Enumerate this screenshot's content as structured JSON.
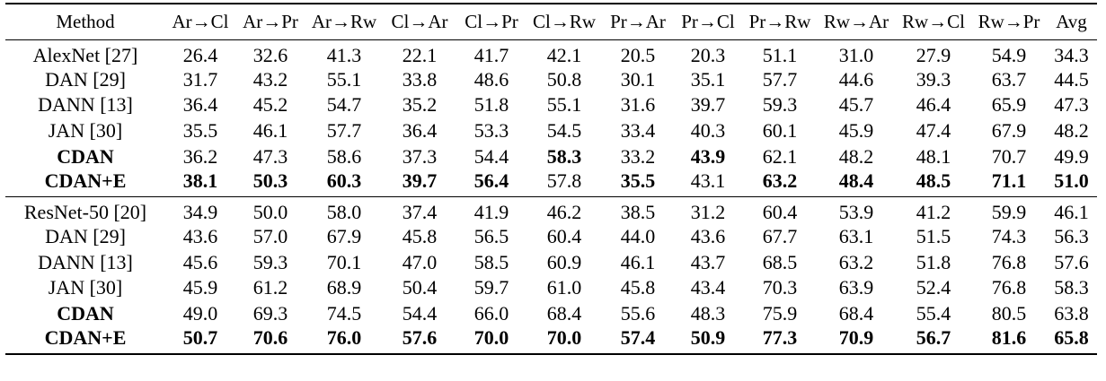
{
  "table": {
    "header": [
      "Method",
      "Ar→Cl",
      "Ar→Pr",
      "Ar→Rw",
      "Cl→Ar",
      "Cl→Pr",
      "Cl→Rw",
      "Pr→Ar",
      "Pr→Cl",
      "Pr→Rw",
      "Rw→Ar",
      "Rw→Cl",
      "Rw→Pr",
      "Avg"
    ],
    "groups": [
      {
        "rows": [
          [
            "AlexNet [27]",
            "26.4",
            "32.6",
            "41.3",
            "22.1",
            "41.7",
            "42.1",
            "20.5",
            "20.3",
            "51.1",
            "31.0",
            "27.9",
            "54.9",
            "34.3"
          ],
          [
            "DAN [29]",
            "31.7",
            "43.2",
            "55.1",
            "33.8",
            "48.6",
            "50.8",
            "30.1",
            "35.1",
            "57.7",
            "44.6",
            "39.3",
            "63.7",
            "44.5"
          ],
          [
            "DANN [13]",
            "36.4",
            "45.2",
            "54.7",
            "35.2",
            "51.8",
            "55.1",
            "31.6",
            "39.7",
            "59.3",
            "45.7",
            "46.4",
            "65.9",
            "47.3"
          ],
          [
            "JAN [30]",
            "35.5",
            "46.1",
            "57.7",
            "36.4",
            "53.3",
            "54.5",
            "33.4",
            "40.3",
            "60.1",
            "45.9",
            "47.4",
            "67.9",
            "48.2"
          ],
          [
            "CDAN",
            "36.2",
            "47.3",
            "58.6",
            "37.3",
            "54.4",
            "58.3",
            "33.2",
            "43.9",
            "62.1",
            "48.2",
            "48.1",
            "70.7",
            "49.9"
          ],
          [
            "CDAN+E",
            "38.1",
            "50.3",
            "60.3",
            "39.7",
            "56.4",
            "57.8",
            "35.5",
            "43.1",
            "63.2",
            "48.4",
            "48.5",
            "71.1",
            "51.0"
          ]
        ]
      },
      {
        "rows": [
          [
            "ResNet-50 [20]",
            "34.9",
            "50.0",
            "58.0",
            "37.4",
            "41.9",
            "46.2",
            "38.5",
            "31.2",
            "60.4",
            "53.9",
            "41.2",
            "59.9",
            "46.1"
          ],
          [
            "DAN [29]",
            "43.6",
            "57.0",
            "67.9",
            "45.8",
            "56.5",
            "60.4",
            "44.0",
            "43.6",
            "67.7",
            "63.1",
            "51.5",
            "74.3",
            "56.3"
          ],
          [
            "DANN [13]",
            "45.6",
            "59.3",
            "70.1",
            "47.0",
            "58.5",
            "60.9",
            "46.1",
            "43.7",
            "68.5",
            "63.2",
            "51.8",
            "76.8",
            "57.6"
          ],
          [
            "JAN [30]",
            "45.9",
            "61.2",
            "68.9",
            "50.4",
            "59.7",
            "61.0",
            "45.8",
            "43.4",
            "70.3",
            "63.9",
            "52.4",
            "76.8",
            "58.3"
          ],
          [
            "CDAN",
            "49.0",
            "69.3",
            "74.5",
            "54.4",
            "66.0",
            "68.4",
            "55.6",
            "48.3",
            "75.9",
            "68.4",
            "55.4",
            "80.5",
            "63.8"
          ],
          [
            "CDAN+E",
            "50.7",
            "70.6",
            "76.0",
            "57.6",
            "70.0",
            "70.0",
            "57.4",
            "50.9",
            "77.3",
            "70.9",
            "56.7",
            "81.6",
            "65.8"
          ]
        ]
      }
    ]
  }
}
